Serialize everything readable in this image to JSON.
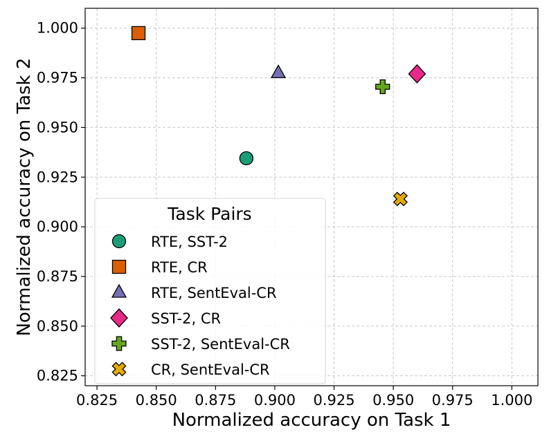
{
  "chart_data": {
    "type": "scatter",
    "title": "",
    "xlabel": "Normalized accuracy on Task 1",
    "ylabel": "Normalized accuracy on Task 2",
    "xlim": [
      0.82,
      1.011
    ],
    "ylim": [
      0.82,
      1.01
    ],
    "xticks": [
      "0.825",
      "0.850",
      "0.875",
      "0.900",
      "0.925",
      "0.950",
      "0.975",
      "1.000"
    ],
    "yticks": [
      "0.825",
      "0.850",
      "0.875",
      "0.900",
      "0.925",
      "0.950",
      "0.975",
      "1.000"
    ],
    "grid": true,
    "legend": {
      "title": "Task Pairs",
      "placement": "lower-left"
    },
    "series": [
      {
        "name": "RTE, SST-2",
        "x": 0.888,
        "y": 0.9345,
        "marker": "circle",
        "color": "#1b9e77"
      },
      {
        "name": "RTE, CR",
        "x": 0.8425,
        "y": 0.9975,
        "marker": "square",
        "color": "#d95f02"
      },
      {
        "name": "RTE, SentEval-CR",
        "x": 0.9015,
        "y": 0.9775,
        "marker": "triangle",
        "color": "#7570b3"
      },
      {
        "name": "SST-2, CR",
        "x": 0.96,
        "y": 0.977,
        "marker": "diamond",
        "color": "#e7298a"
      },
      {
        "name": "SST-2, SentEval-CR",
        "x": 0.9455,
        "y": 0.9705,
        "marker": "plus",
        "color": "#66a61e"
      },
      {
        "name": "CR, SentEval-CR",
        "x": 0.953,
        "y": 0.914,
        "marker": "x",
        "color": "#e6ab02"
      }
    ]
  }
}
